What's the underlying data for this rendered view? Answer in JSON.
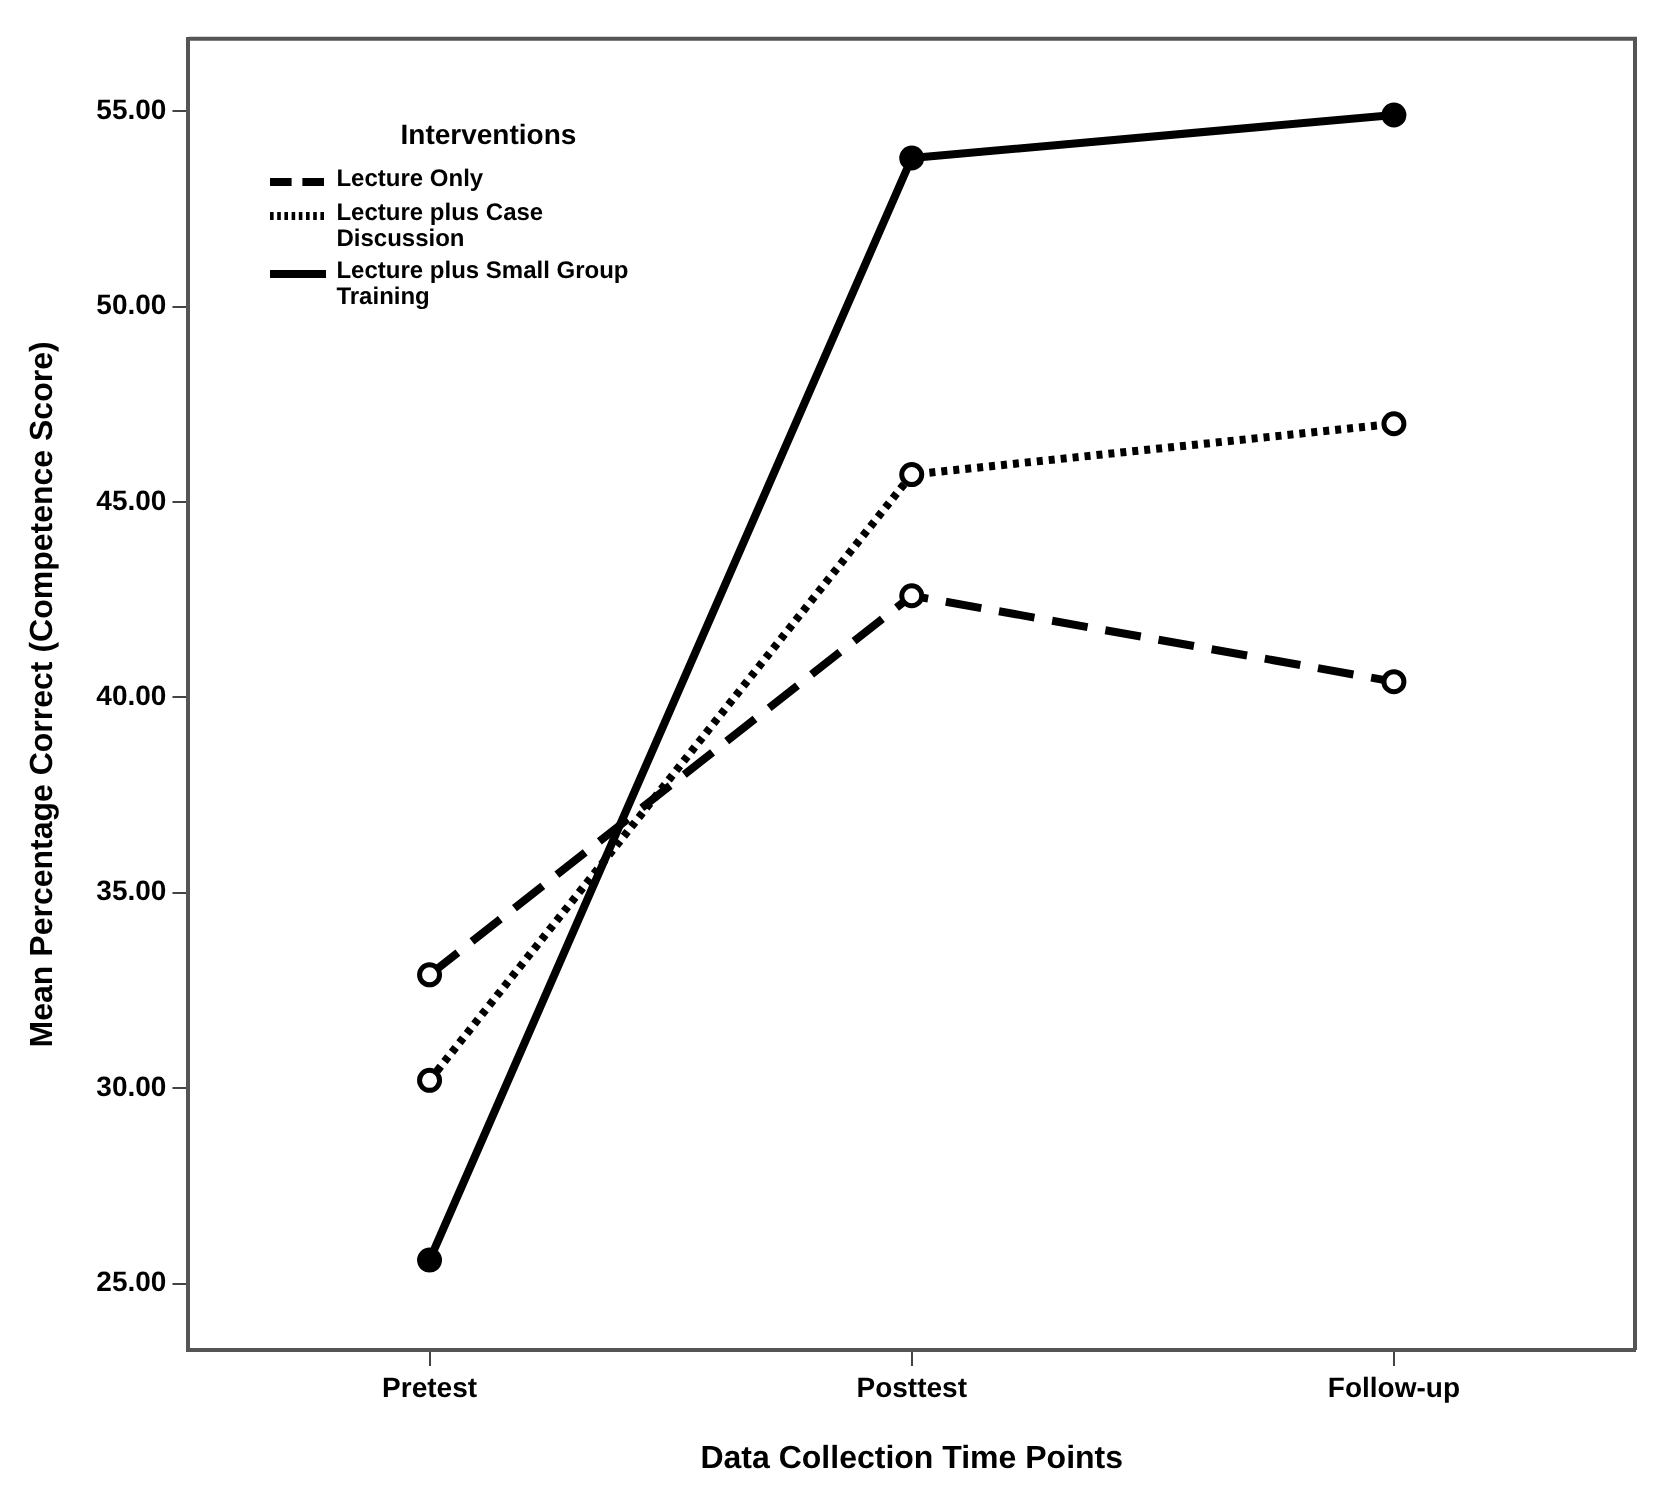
{
  "chart_data": {
    "type": "line",
    "xlabel": "Data Collection Time Points",
    "ylabel": "Mean Percentage Correct (Competence Score)",
    "legend_title": "Interventions",
    "legend": "top left",
    "marker": "circle",
    "grid": false,
    "categories": [
      "Pretest",
      "Posttest",
      "Follow-up"
    ],
    "ylim": [
      23.3,
      56.85
    ],
    "yticks": [
      {
        "value": 25,
        "label": "25.00"
      },
      {
        "value": 30,
        "label": "30.00"
      },
      {
        "value": 35,
        "label": "35.00"
      },
      {
        "value": 40,
        "label": "40.00"
      },
      {
        "value": 45,
        "label": "45.00"
      },
      {
        "value": 50,
        "label": "50.00"
      },
      {
        "value": 55,
        "label": "55.00"
      }
    ],
    "series": [
      {
        "name": "Lecture Only",
        "color": "#000000",
        "line_style": "dashed",
        "values": [
          32.9,
          42.6,
          40.4
        ]
      },
      {
        "name": "Lecture plus Case Discussion",
        "color": "#000000",
        "line_style": "dotted",
        "values": [
          30.2,
          45.7,
          47.0
        ]
      },
      {
        "name": "Lecture plus Small Group Training",
        "color": "#000000",
        "line_style": "solid",
        "values": [
          25.6,
          53.8,
          54.9
        ]
      }
    ]
  }
}
